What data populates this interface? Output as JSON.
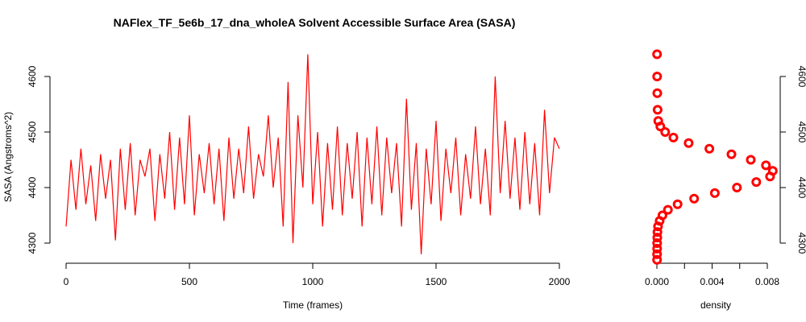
{
  "chart_data": [
    {
      "type": "line",
      "title": "NAFlex_TF_5e6b_17_dna_wholeA Solvent Accessible Surface Area (SASA)",
      "xlabel": "Time (frames)",
      "ylabel": "SASA (Angstroms^2)",
      "xlim": [
        0,
        2000
      ],
      "ylim": [
        4280,
        4640
      ],
      "x_ticks": [
        "0",
        "500",
        "1000",
        "1500",
        "2000"
      ],
      "y_ticks": [
        "4300",
        "4400",
        "4500",
        "4600"
      ],
      "color": "#ff0000",
      "series": [
        {
          "x": [
            0,
            20,
            40,
            60,
            80,
            100,
            120,
            140,
            160,
            180,
            200,
            220,
            240,
            260,
            280,
            300,
            320,
            340,
            360,
            380,
            400,
            420,
            440,
            460,
            480,
            500,
            520,
            540,
            560,
            580,
            600,
            620,
            640,
            660,
            680,
            700,
            720,
            740,
            760,
            780,
            800,
            820,
            840,
            860,
            880,
            900,
            920,
            940,
            960,
            980,
            1000,
            1020,
            1040,
            1060,
            1080,
            1100,
            1120,
            1140,
            1160,
            1180,
            1200,
            1220,
            1240,
            1260,
            1280,
            1300,
            1320,
            1340,
            1360,
            1380,
            1400,
            1420,
            1440,
            1460,
            1480,
            1500,
            1520,
            1540,
            1560,
            1580,
            1600,
            1620,
            1640,
            1660,
            1680,
            1700,
            1720,
            1740,
            1760,
            1780,
            1800,
            1820,
            1840,
            1860,
            1880,
            1900,
            1920,
            1940,
            1960,
            1980,
            2000
          ],
          "values": [
            4330,
            4450,
            4360,
            4470,
            4370,
            4440,
            4340,
            4460,
            4380,
            4450,
            4305,
            4470,
            4360,
            4480,
            4350,
            4450,
            4420,
            4470,
            4340,
            4460,
            4380,
            4500,
            4360,
            4490,
            4370,
            4530,
            4350,
            4460,
            4390,
            4480,
            4370,
            4470,
            4340,
            4490,
            4380,
            4470,
            4390,
            4510,
            4380,
            4460,
            4420,
            4530,
            4400,
            4490,
            4330,
            4590,
            4300,
            4530,
            4400,
            4640,
            4370,
            4500,
            4330,
            4480,
            4360,
            4510,
            4350,
            4480,
            4380,
            4500,
            4330,
            4490,
            4370,
            4510,
            4350,
            4490,
            4390,
            4480,
            4330,
            4560,
            4360,
            4480,
            4280,
            4470,
            4370,
            4520,
            4340,
            4470,
            4390,
            4490,
            4350,
            4460,
            4380,
            4510,
            4370,
            4470,
            4350,
            4600,
            4390,
            4520,
            4380,
            4490,
            4360,
            4500,
            4370,
            4480,
            4350,
            4540,
            4390,
            4490,
            4470
          ]
        }
      ]
    },
    {
      "type": "scatter",
      "xlabel": "density",
      "ylabel": "",
      "xlim": [
        0,
        0.0085
      ],
      "ylim": [
        4280,
        4640
      ],
      "x_ticks": [
        "0.000",
        "0.004",
        "0.008"
      ],
      "y_ticks": [
        "4300",
        "4400",
        "4500",
        "4600"
      ],
      "color": "#ff0000",
      "series": [
        {
          "x": [
            1e-05,
            1e-05,
            2e-05,
            2e-05,
            3e-05,
            4e-05,
            8e-05,
            0.0002,
            0.0004,
            0.0008,
            0.0015,
            0.0027,
            0.0042,
            0.0058,
            0.0072,
            0.0082,
            0.0084,
            0.0079,
            0.0068,
            0.0054,
            0.0038,
            0.0023,
            0.0012,
            0.0006,
            0.00025,
            0.0001,
            5e-05,
            3e-05,
            2e-05,
            1e-05
          ],
          "values": [
            4270,
            4280,
            4290,
            4300,
            4310,
            4320,
            4330,
            4340,
            4350,
            4360,
            4370,
            4380,
            4390,
            4400,
            4410,
            4420,
            4430,
            4440,
            4450,
            4460,
            4470,
            4480,
            4490,
            4500,
            4510,
            4520,
            4540,
            4570,
            4600,
            4640
          ]
        }
      ]
    }
  ]
}
